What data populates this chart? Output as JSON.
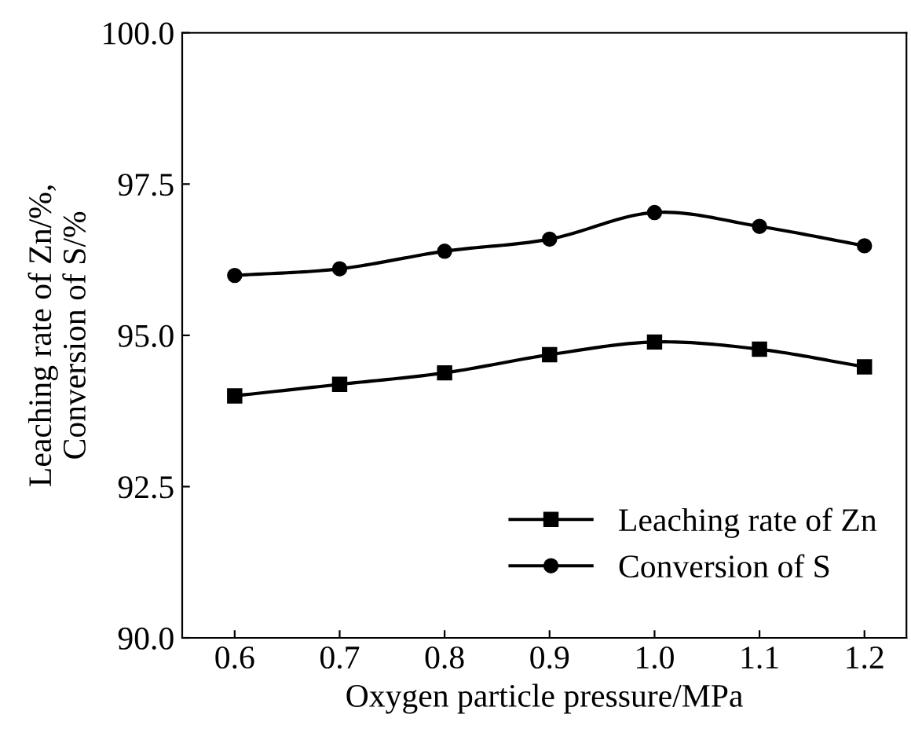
{
  "chart_data": {
    "type": "line",
    "xlabel": "Oxygen particle pressure/MPa",
    "ylabel": "Leaching rate of Zn/%,\nConversion of S/%",
    "x": [
      0.6,
      0.7,
      0.8,
      0.9,
      1.0,
      1.1,
      1.2
    ],
    "series": [
      {
        "name": "Leaching rate of Zn",
        "color": "#000000",
        "marker": "square",
        "values": [
          94.0,
          94.19,
          94.38,
          94.68,
          94.89,
          94.77,
          94.48
        ]
      },
      {
        "name": "Conversion of S",
        "color": "#000000",
        "marker": "circle",
        "values": [
          95.99,
          96.1,
          96.39,
          96.59,
          97.03,
          96.8,
          96.48
        ]
      }
    ],
    "xlim": [
      0.55,
      1.24
    ],
    "xticks": [
      0.6,
      0.7,
      0.8,
      0.9,
      {
        "value": 1.0,
        "label": "1.0"
      },
      1.1,
      1.2
    ],
    "ylim": [
      90.0,
      100.0
    ],
    "yticks": [
      {
        "value": 90,
        "label": "90.0"
      },
      {
        "value": 92.5,
        "label": "92.5"
      },
      {
        "value": 95,
        "label": "95.0"
      },
      {
        "value": 97.5,
        "label": "97.5"
      },
      {
        "value": 100,
        "label": "100.0"
      }
    ],
    "grid": false,
    "legend": "bottom right",
    "line_style": "solid"
  }
}
